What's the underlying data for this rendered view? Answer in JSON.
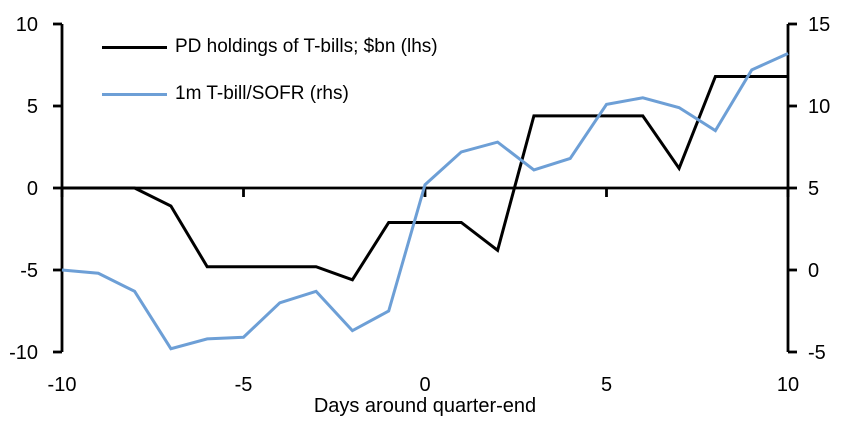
{
  "chart_data": {
    "type": "line",
    "title": "",
    "xlabel": "Days around quarter-end",
    "grid": false,
    "legend_position": "top-left-inside",
    "axis_color": "#000000",
    "x_axis": {
      "lim": [
        -10,
        10
      ],
      "ticks": [
        -10,
        -5,
        0,
        5,
        10
      ]
    },
    "left_axis": {
      "lim": [
        -10,
        10
      ],
      "ticks": [
        10,
        5,
        0,
        -5,
        -10
      ]
    },
    "right_axis": {
      "lim": [
        -5,
        15
      ],
      "ticks": [
        15,
        10,
        5,
        0,
        -5
      ]
    },
    "x": [
      -10,
      -9,
      -8,
      -7,
      -6,
      -5,
      -4,
      -3,
      -2,
      -1,
      0,
      1,
      2,
      3,
      4,
      5,
      6,
      7,
      8,
      9,
      10
    ],
    "series": [
      {
        "id": "pd-holdings",
        "name": "PD holdings of T-bills; $bn (lhs)",
        "axis": "left",
        "color": "#000000",
        "values": [
          0,
          0,
          0,
          -1.1,
          -4.8,
          -4.8,
          -4.8,
          -4.8,
          -5.6,
          -2.1,
          -2.1,
          -2.1,
          -3.8,
          4.4,
          4.4,
          4.4,
          4.4,
          1.2,
          6.8,
          6.8,
          6.8
        ]
      },
      {
        "id": "tbill-sofr",
        "name": "1m T-bill/SOFR (rhs)",
        "axis": "right",
        "color": "#6D9FD6",
        "values": [
          0.0,
          -0.2,
          -1.3,
          -4.8,
          -4.2,
          -4.1,
          -2.0,
          -1.3,
          -3.7,
          -2.5,
          5.2,
          7.2,
          7.8,
          6.1,
          6.8,
          10.1,
          10.5,
          9.9,
          8.5,
          12.2,
          13.2
        ]
      }
    ]
  }
}
